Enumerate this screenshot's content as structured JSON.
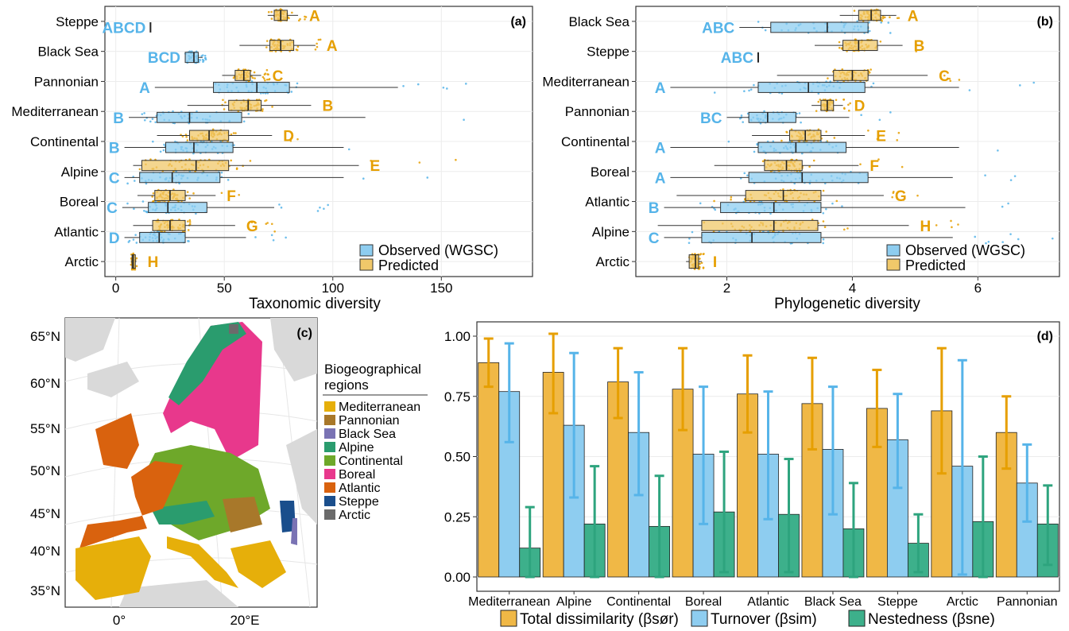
{
  "colors": {
    "observed": "#8ECDF0",
    "observed_dark": "#56B4E9",
    "predicted": "#E69F00",
    "predicted_light": "#F0C86A",
    "nestedness": "#2EA47E"
  },
  "chart_data": [
    {
      "type": "boxplot",
      "panel_label": "(a)",
      "xlabel": "Taxonomic diversity",
      "xlim": [
        -5,
        192
      ],
      "xticks": [
        0,
        50,
        100,
        150
      ],
      "legend_position": "bottom-right",
      "legend": [
        "Observed (WGSC)",
        "Predicted"
      ],
      "regions": [
        {
          "name": "Steppe",
          "letter": "A",
          "obs_letter": "ABCD",
          "pred": {
            "min": 70,
            "q1": 73,
            "med": 76,
            "q3": 79,
            "max": 84
          },
          "obs": {
            "min": 16,
            "q1": 16,
            "med": 16,
            "q3": 16,
            "max": 16
          }
        },
        {
          "name": "Black Sea",
          "letter": "A",
          "obs_letter": "BCD",
          "pred": {
            "min": 57,
            "q1": 71,
            "med": 76,
            "q3": 82,
            "max": 92
          },
          "obs": {
            "min": 32,
            "q1": 32,
            "med": 36,
            "q3": 38,
            "max": 40
          }
        },
        {
          "name": "Pannonian",
          "letter": "C",
          "obs_letter": "A",
          "pred": {
            "min": 49,
            "q1": 55,
            "med": 59,
            "q3": 62,
            "max": 67
          },
          "obs": {
            "min": 18,
            "q1": 45,
            "med": 65,
            "q3": 80,
            "max": 130
          }
        },
        {
          "name": "Mediterranean",
          "letter": "B",
          "obs_letter": "B",
          "pred": {
            "min": 33,
            "q1": 52,
            "med": 61,
            "q3": 67,
            "max": 90
          },
          "obs": {
            "min": 6,
            "q1": 19,
            "med": 34,
            "q3": 58,
            "max": 115
          }
        },
        {
          "name": "Continental",
          "letter": "D",
          "obs_letter": "B",
          "pred": {
            "min": 19,
            "q1": 34,
            "med": 43,
            "q3": 52,
            "max": 72
          },
          "obs": {
            "min": 4,
            "q1": 23,
            "med": 36,
            "q3": 54,
            "max": 105
          }
        },
        {
          "name": "Alpine",
          "letter": "E",
          "obs_letter": "C",
          "pred": {
            "min": 8,
            "q1": 12,
            "med": 37,
            "q3": 52,
            "max": 112
          },
          "obs": {
            "min": 4,
            "q1": 11,
            "med": 26,
            "q3": 48,
            "max": 105
          }
        },
        {
          "name": "Boreal",
          "letter": "F",
          "obs_letter": "C",
          "pred": {
            "min": 10,
            "q1": 18,
            "med": 25,
            "q3": 32,
            "max": 46
          },
          "obs": {
            "min": 3,
            "q1": 15,
            "med": 24,
            "q3": 42,
            "max": 73
          }
        },
        {
          "name": "Atlantic",
          "letter": "G",
          "obs_letter": "D",
          "pred": {
            "min": 8,
            "q1": 17,
            "med": 25,
            "q3": 32,
            "max": 55
          },
          "obs": {
            "min": 4,
            "q1": 11,
            "med": 20,
            "q3": 32,
            "max": 60
          }
        },
        {
          "name": "Arctic",
          "letter": "H",
          "obs_letter": "",
          "pred": {
            "min": 7,
            "q1": 7.5,
            "med": 8,
            "q3": 9,
            "max": 9.5
          },
          "obs": null
        }
      ]
    },
    {
      "type": "boxplot",
      "panel_label": "(b)",
      "xlabel": "Phylogenetic diversity",
      "xlim": [
        0.55,
        7.3
      ],
      "xticks": [
        2,
        4,
        6
      ],
      "legend_position": "bottom-right",
      "legend": [
        "Observed (WGSC)",
        "Predicted"
      ],
      "regions": [
        {
          "name": "Black Sea",
          "letter": "A",
          "obs_letter": "ABC",
          "pred": {
            "min": 3.8,
            "q1": 4.1,
            "med": 4.3,
            "q3": 4.45,
            "max": 4.7
          },
          "obs": {
            "min": 2.2,
            "q1": 2.7,
            "med": 3.6,
            "q3": 4.25,
            "max": 4.25
          }
        },
        {
          "name": "Steppe",
          "letter": "B",
          "obs_letter": "ABC",
          "pred": {
            "min": 3.4,
            "q1": 3.85,
            "med": 4.1,
            "q3": 4.4,
            "max": 4.8
          },
          "obs": {
            "min": 2.5,
            "q1": 2.5,
            "med": 2.5,
            "q3": 2.5,
            "max": 2.5
          }
        },
        {
          "name": "Mediterranean",
          "letter": "C",
          "obs_letter": "A",
          "pred": {
            "min": 2.8,
            "q1": 3.7,
            "med": 4.0,
            "q3": 4.25,
            "max": 5.2
          },
          "obs": {
            "min": 1.1,
            "q1": 2.5,
            "med": 3.3,
            "q3": 4.2,
            "max": 5.7
          }
        },
        {
          "name": "Pannonian",
          "letter": "D",
          "obs_letter": "BC",
          "pred": {
            "min": 3.35,
            "q1": 3.5,
            "med": 3.6,
            "q3": 3.7,
            "max": 3.85
          },
          "obs": {
            "min": 2.0,
            "q1": 2.35,
            "med": 2.65,
            "q3": 3.1,
            "max": 3.95
          }
        },
        {
          "name": "Continental",
          "letter": "E",
          "obs_letter": "A",
          "pred": {
            "min": 2.4,
            "q1": 3.0,
            "med": 3.25,
            "q3": 3.5,
            "max": 4.2
          },
          "obs": {
            "min": 1.1,
            "q1": 2.5,
            "med": 3.1,
            "q3": 3.9,
            "max": 5.7
          }
        },
        {
          "name": "Boreal",
          "letter": "F",
          "obs_letter": "A",
          "pred": {
            "min": 1.8,
            "q1": 2.6,
            "med": 2.95,
            "q3": 3.2,
            "max": 4.1
          },
          "obs": {
            "min": 1.1,
            "q1": 2.35,
            "med": 3.2,
            "q3": 4.25,
            "max": 5.6
          }
        },
        {
          "name": "Atlantic",
          "letter": "G",
          "obs_letter": "B",
          "pred": {
            "min": 1.2,
            "q1": 2.3,
            "med": 2.9,
            "q3": 3.5,
            "max": 4.5
          },
          "obs": {
            "min": 1.0,
            "q1": 1.9,
            "med": 2.75,
            "q3": 3.5,
            "max": 5.8
          }
        },
        {
          "name": "Alpine",
          "letter": "H",
          "obs_letter": "C",
          "pred": {
            "min": 0.9,
            "q1": 1.6,
            "med": 2.75,
            "q3": 3.45,
            "max": 4.9
          },
          "obs": {
            "min": 1.0,
            "q1": 1.6,
            "med": 2.4,
            "q3": 3.5,
            "max": 5.6
          }
        },
        {
          "name": "Arctic",
          "letter": "I",
          "obs_letter": "",
          "pred": {
            "min": 1.35,
            "q1": 1.4,
            "med": 1.5,
            "q3": 1.55,
            "max": 1.6
          },
          "obs": null
        }
      ]
    },
    {
      "type": "map",
      "panel_label": "(c)",
      "lat_labels": [
        "65°N",
        "60°N",
        "55°N",
        "50°N",
        "45°N",
        "40°N",
        "35°N"
      ],
      "lon_labels": [
        "0°",
        "20°E"
      ],
      "legend_title": "Biogeographical regions",
      "legend": [
        {
          "name": "Mediterranean",
          "color": "#E6AF0A"
        },
        {
          "name": "Pannonian",
          "color": "#A8782A"
        },
        {
          "name": "Black Sea",
          "color": "#7A73B4"
        },
        {
          "name": "Alpine",
          "color": "#2A9C6E"
        },
        {
          "name": "Continental",
          "color": "#6EA82A"
        },
        {
          "name": "Boreal",
          "color": "#E8388C"
        },
        {
          "name": "Atlantic",
          "color": "#D9620E"
        },
        {
          "name": "Steppe",
          "color": "#1A4E8C"
        },
        {
          "name": "Arctic",
          "color": "#6B6B6B"
        }
      ]
    },
    {
      "type": "bar",
      "panel_label": "(d)",
      "categories": [
        "Mediterranean",
        "Alpine",
        "Continental",
        "Boreal",
        "Atlantic",
        "Black Sea",
        "Steppe",
        "Arctic",
        "Pannonian"
      ],
      "ylim": [
        0,
        1.05
      ],
      "yticks": [
        "0.00",
        "0.25",
        "0.50",
        "0.75",
        "1.00"
      ],
      "legend_position": "bottom",
      "series": [
        {
          "name": "Total dissimilarity (βsør)",
          "values": [
            0.89,
            0.85,
            0.81,
            0.78,
            0.76,
            0.72,
            0.7,
            0.69,
            0.6
          ],
          "err_low": [
            0.79,
            0.68,
            0.66,
            0.61,
            0.6,
            0.53,
            0.54,
            0.43,
            0.45
          ],
          "err_high": [
            0.99,
            1.01,
            0.95,
            0.95,
            0.92,
            0.91,
            0.86,
            0.95,
            0.75
          ]
        },
        {
          "name": "Turnover (βsim)",
          "values": [
            0.77,
            0.63,
            0.6,
            0.51,
            0.51,
            0.53,
            0.57,
            0.46,
            0.39
          ],
          "err_low": [
            0.56,
            0.33,
            0.34,
            0.22,
            0.24,
            0.26,
            0.37,
            0.01,
            0.23
          ],
          "err_high": [
            0.97,
            0.93,
            0.85,
            0.79,
            0.77,
            0.79,
            0.76,
            0.9,
            0.55
          ]
        },
        {
          "name": "Nestedness (βsne)",
          "values": [
            0.12,
            0.22,
            0.21,
            0.27,
            0.26,
            0.2,
            0.14,
            0.23,
            0.22
          ],
          "err_low": [
            0.0,
            0.0,
            0.0,
            0.02,
            0.02,
            0.0,
            0.02,
            0.0,
            0.05
          ],
          "err_high": [
            0.29,
            0.46,
            0.42,
            0.52,
            0.49,
            0.39,
            0.26,
            0.5,
            0.38
          ]
        }
      ]
    }
  ]
}
